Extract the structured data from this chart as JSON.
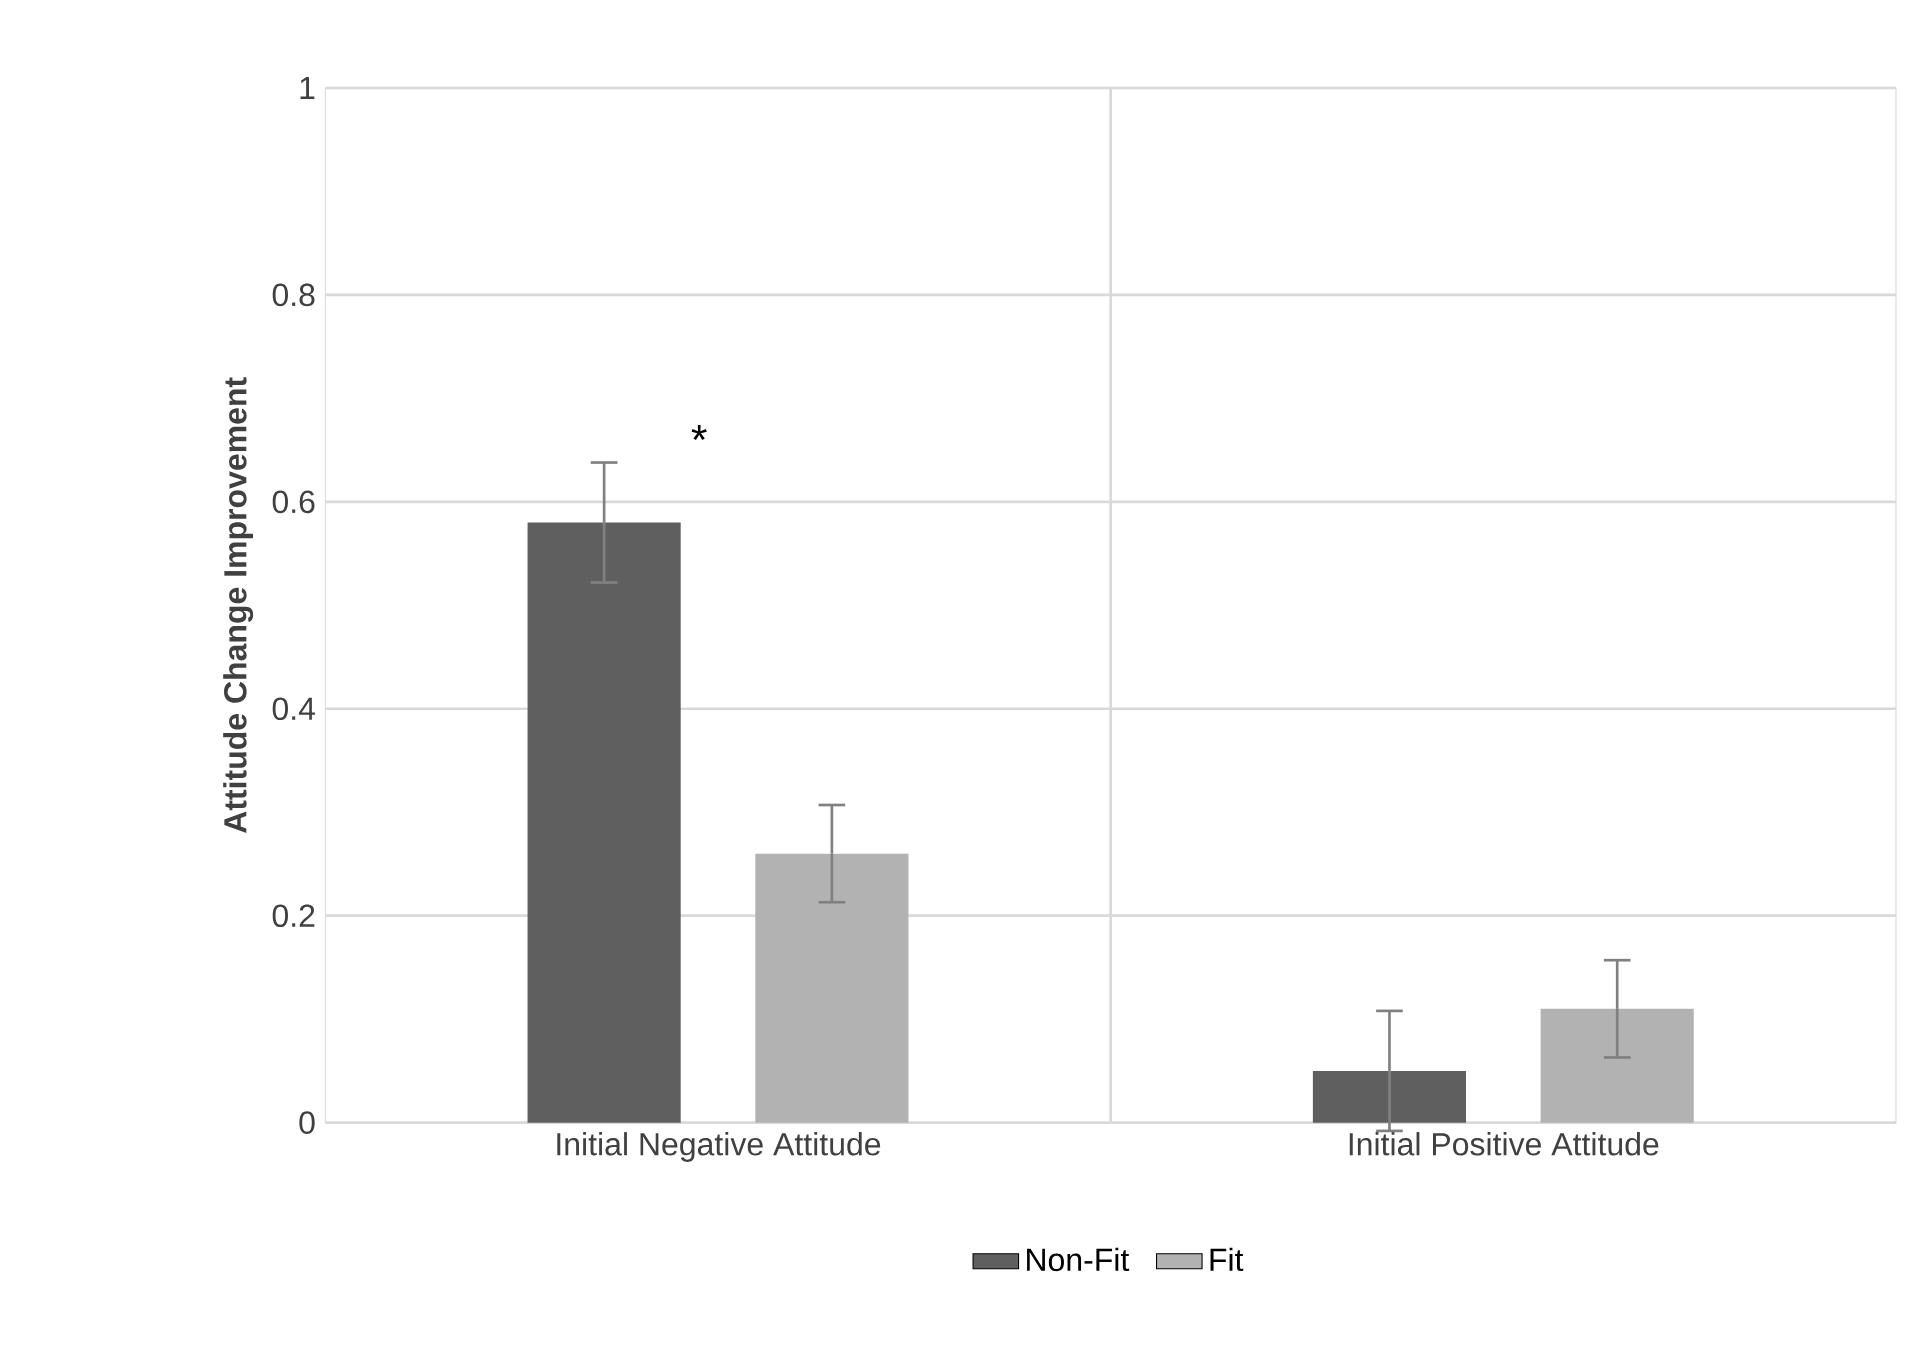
{
  "chart_data": {
    "type": "bar",
    "ylabel": "Attitude Change Improvement",
    "categories": [
      "Initial Negative Attitude",
      "Initial Positive Attitude"
    ],
    "series": [
      {
        "name": "Non-Fit",
        "color": "#5f5f5f",
        "values": [
          0.58,
          0.05
        ],
        "errors": [
          0.058,
          0.058
        ]
      },
      {
        "name": "Fit",
        "color": "#b2b2b2",
        "values": [
          0.26,
          0.11
        ],
        "errors": [
          0.047,
          0.047
        ]
      }
    ],
    "annotations": [
      "*"
    ],
    "ylim": [
      0,
      1
    ],
    "yticks": [
      0,
      0.2,
      0.4,
      0.6,
      0.8,
      1
    ],
    "grid": true,
    "legend": "bottom"
  }
}
